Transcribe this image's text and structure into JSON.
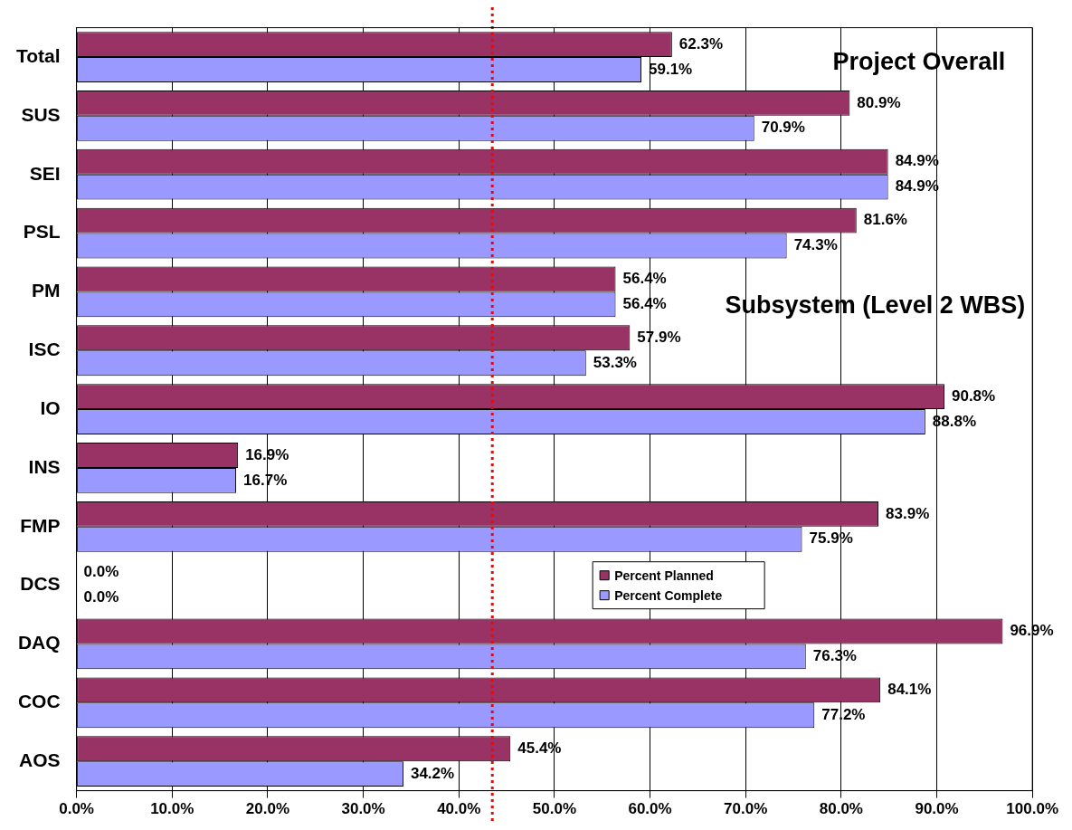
{
  "chart_data": {
    "type": "bar",
    "orientation": "horizontal",
    "categories": [
      "Total",
      "SUS",
      "SEI",
      "PSL",
      "PM",
      "ISC",
      "IO",
      "INS",
      "FMP",
      "DCS",
      "DAQ",
      "COC",
      "AOS"
    ],
    "series": [
      {
        "name": "Percent Planned",
        "color": "#993366",
        "values": [
          62.3,
          80.9,
          84.9,
          81.6,
          56.4,
          57.9,
          90.8,
          16.9,
          83.9,
          0,
          96.9,
          84.1,
          45.4
        ],
        "value_labels": [
          "62.3%",
          "80.9%",
          "84.9%",
          "81.6%",
          "56.4%",
          "57.9%",
          "90.8%",
          "16.9%",
          "83.9%",
          "0.0%",
          "96.9%",
          "84.1%",
          "45.4%"
        ]
      },
      {
        "name": "Percent Complete",
        "color": "#9999ff",
        "values": [
          59.1,
          70.9,
          84.9,
          74.3,
          56.4,
          53.3,
          88.8,
          16.7,
          75.9,
          0,
          76.3,
          77.2,
          34.2
        ],
        "value_labels": [
          "59.1%",
          "70.9%",
          "84.9%",
          "74.3%",
          "56.4%",
          "53.3%",
          "88.8%",
          "16.7%",
          "75.9%",
          "0.0%",
          "76.3%",
          "77.2%",
          "34.2%"
        ]
      }
    ],
    "xlim": [
      0,
      100
    ],
    "xticks": [
      {
        "value": 0,
        "label": "0.0%"
      },
      {
        "value": 10,
        "label": "10.0%"
      },
      {
        "value": 20,
        "label": "20.0%"
      },
      {
        "value": 30,
        "label": "30.0%"
      },
      {
        "value": 40,
        "label": "40.0%"
      },
      {
        "value": 50,
        "label": "50.0%"
      },
      {
        "value": 60,
        "label": "60.0%"
      },
      {
        "value": 70,
        "label": "70.0%"
      },
      {
        "value": 80,
        "label": "80.0%"
      },
      {
        "value": 90,
        "label": "90.0%"
      },
      {
        "value": 100,
        "label": "100.0%"
      }
    ],
    "grid": "x",
    "legend": "bottom right",
    "ref_lines": [
      {
        "axis": "x",
        "value": 43.5,
        "color": "#ff0000",
        "line_style": "dotted"
      }
    ],
    "annotations": [
      "Project Overall",
      "Subsystem (Level 2 WBS)"
    ]
  }
}
